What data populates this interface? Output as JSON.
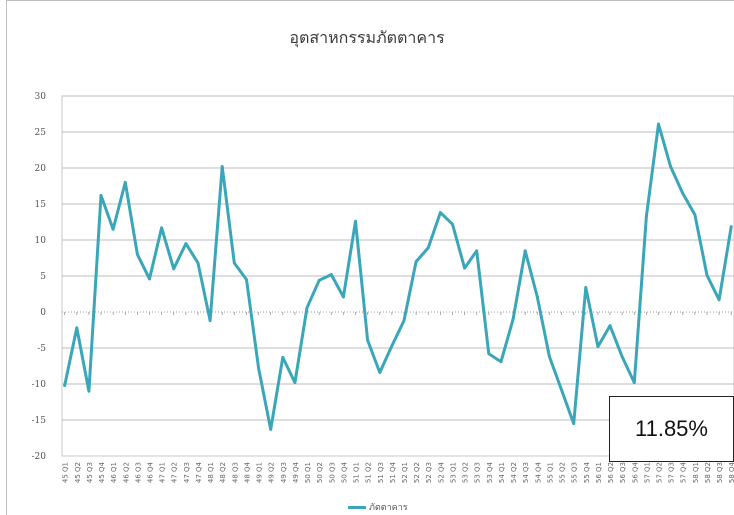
{
  "chart_data": {
    "type": "line",
    "title": "อุตสาหกรรมภัตตาคาร",
    "ylim": [
      -20,
      30
    ],
    "yticks": [
      30,
      25,
      20,
      15,
      10,
      5,
      0,
      -5,
      -10,
      -15,
      -20
    ],
    "grid": true,
    "legend": "bottom",
    "color": "#3aa6b9",
    "categories": [
      "45 Q1",
      "45 Q2",
      "45 Q3",
      "45 Q4",
      "46 Q1",
      "46 Q2",
      "46 Q3",
      "46 Q4",
      "47 Q1",
      "47 Q2",
      "47 Q3",
      "47 Q4",
      "48 Q1",
      "48 Q2",
      "48 Q3",
      "48 Q4",
      "49 Q1",
      "49 Q2",
      "49 Q3",
      "49 Q4",
      "50 Q1",
      "50 Q2",
      "50 Q3",
      "50 Q4",
      "51 Q1",
      "51 Q2",
      "51 Q3",
      "51 Q4",
      "52 Q1",
      "52 Q2",
      "52 Q3",
      "52 Q4",
      "53 Q1",
      "53 Q2",
      "53 Q3",
      "53 Q4",
      "54 Q1",
      "54 Q2",
      "54 Q3",
      "54 Q4",
      "55 Q1",
      "55 Q2",
      "55 Q3",
      "55 Q4",
      "56 Q1",
      "56 Q2",
      "56 Q3",
      "56 Q4",
      "57 Q1",
      "57 Q2",
      "57 Q3",
      "57 Q4",
      "58 Q1",
      "58 Q2",
      "58 Q3",
      "58 Q4"
    ],
    "series": [
      {
        "name": "ภัตตาคาร",
        "values": [
          -10.2,
          -2.2,
          -11.0,
          16.2,
          11.5,
          18.0,
          8.0,
          4.6,
          11.7,
          6.0,
          9.5,
          6.8,
          -1.2,
          20.2,
          6.8,
          4.5,
          -7.8,
          -16.3,
          -6.3,
          -9.8,
          0.6,
          4.4,
          5.2,
          2.1,
          12.6,
          -3.9,
          -8.4,
          -4.7,
          -1.2,
          7.0,
          8.9,
          13.8,
          12.2,
          6.1,
          8.5,
          -5.8,
          -6.9,
          -1.0,
          8.5,
          2.1,
          -6.2,
          -10.8,
          -15.5,
          3.4,
          -4.8,
          -1.9,
          -6.2,
          -9.8,
          13.3,
          26.1,
          20.2,
          16.5,
          13.5,
          5.1,
          1.7,
          11.85
        ]
      }
    ]
  },
  "callout": {
    "value": "11.85%"
  }
}
